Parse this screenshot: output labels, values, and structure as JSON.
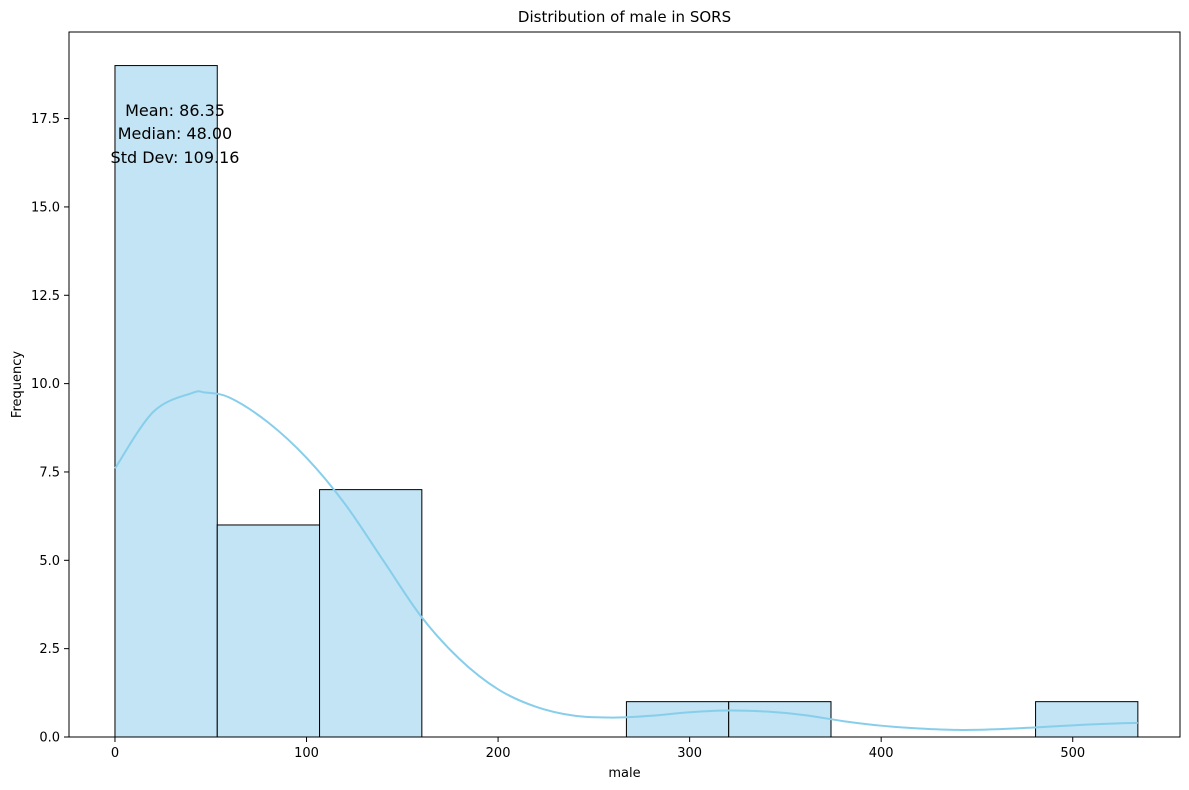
{
  "chart_data": {
    "type": "histogram",
    "title": "Distribution of male in SORS",
    "xlabel": "male",
    "ylabel": "Frequency",
    "xlim": [
      -24,
      556
    ],
    "ylim": [
      0,
      19.95
    ],
    "x_ticks": [
      0,
      100,
      200,
      300,
      400,
      500
    ],
    "y_ticks": [
      0.0,
      2.5,
      5.0,
      7.5,
      10.0,
      12.5,
      15.0,
      17.5
    ],
    "x_tick_labels": [
      "0",
      "100",
      "200",
      "300",
      "400",
      "500"
    ],
    "y_tick_labels": [
      "0.0",
      "2.5",
      "5.0",
      "7.5",
      "10.0",
      "12.5",
      "15.0",
      "17.5"
    ],
    "bins": [
      {
        "x0": 0,
        "x1": 53.4,
        "count": 19
      },
      {
        "x0": 53.4,
        "x1": 106.8,
        "count": 6
      },
      {
        "x0": 106.8,
        "x1": 160.2,
        "count": 7
      },
      {
        "x0": 160.2,
        "x1": 213.6,
        "count": 0
      },
      {
        "x0": 213.6,
        "x1": 267.0,
        "count": 0
      },
      {
        "x0": 267.0,
        "x1": 320.4,
        "count": 1
      },
      {
        "x0": 320.4,
        "x1": 373.8,
        "count": 1
      },
      {
        "x0": 373.8,
        "x1": 427.2,
        "count": 0
      },
      {
        "x0": 427.2,
        "x1": 480.6,
        "count": 0
      },
      {
        "x0": 480.6,
        "x1": 534.0,
        "count": 1
      }
    ],
    "kde": {
      "x": [
        0,
        20,
        40,
        47,
        60,
        80,
        100,
        120,
        140,
        160,
        180,
        200,
        220,
        240,
        260,
        280,
        300,
        320,
        340,
        360,
        380,
        400,
        420,
        440,
        460,
        480,
        500,
        520,
        534
      ],
      "y": [
        7.6,
        9.2,
        9.73,
        9.75,
        9.6,
        8.9,
        7.9,
        6.6,
        5.0,
        3.4,
        2.2,
        1.35,
        0.85,
        0.6,
        0.55,
        0.6,
        0.7,
        0.75,
        0.72,
        0.62,
        0.45,
        0.32,
        0.24,
        0.2,
        0.22,
        0.27,
        0.33,
        0.38,
        0.4
      ]
    },
    "annotation": [
      "Mean: 86.35",
      "Median: 48.00",
      "Std Dev: 109.16"
    ],
    "colors": {
      "bar_fill": "#c2e4f4",
      "bar_edge": "#000000",
      "kde_line": "#87ceeb"
    },
    "grid": false,
    "legend": "none"
  }
}
